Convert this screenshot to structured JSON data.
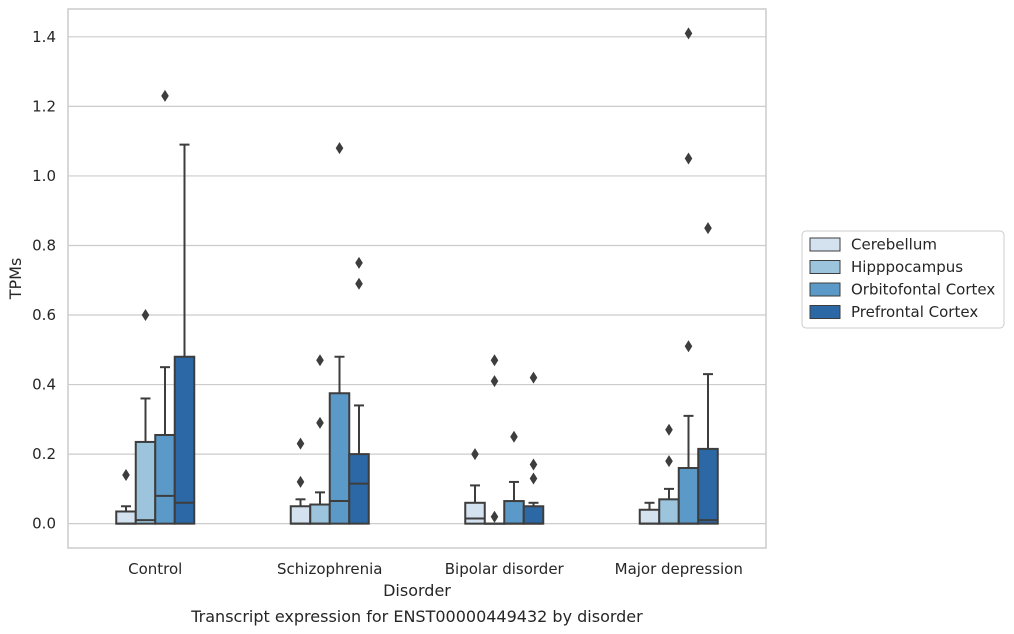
{
  "chart_data": {
    "type": "box",
    "xlabel": "Disorder",
    "ylabel": "TPMs",
    "caption": "Transcript expression for ENST00000449432 by disorder",
    "ylim": [
      -0.07,
      1.48
    ],
    "yticks": [
      0.0,
      0.2,
      0.4,
      0.6,
      0.8,
      1.0,
      1.2,
      1.4
    ],
    "ytick_labels": [
      "0.0",
      "0.2",
      "0.4",
      "0.6",
      "0.8",
      "1.0",
      "1.2",
      "1.4"
    ],
    "grid": "horizontal",
    "legend_position": "right",
    "categories": [
      "Control",
      "Schizophrenia",
      "Bipolar disorder",
      "Major depression"
    ],
    "series": [
      {
        "name": "Cerebellum",
        "color": "#d4e1ef",
        "boxes": [
          {
            "q1": 0.0,
            "median": 0.0,
            "q3": 0.035,
            "whisker_low": 0.0,
            "whisker_high": 0.05,
            "outliers": [
              0.14
            ]
          },
          {
            "q1": 0.0,
            "median": 0.0,
            "q3": 0.05,
            "whisker_low": 0.0,
            "whisker_high": 0.07,
            "outliers": [
              0.23,
              0.12
            ]
          },
          {
            "q1": 0.0,
            "median": 0.015,
            "q3": 0.06,
            "whisker_low": 0.0,
            "whisker_high": 0.11,
            "outliers": [
              0.2
            ]
          },
          {
            "q1": 0.0,
            "median": 0.0,
            "q3": 0.04,
            "whisker_low": 0.0,
            "whisker_high": 0.06,
            "outliers": []
          }
        ]
      },
      {
        "name": "Hipppocampus",
        "color": "#9cc4dd",
        "boxes": [
          {
            "q1": 0.0,
            "median": 0.01,
            "q3": 0.235,
            "whisker_low": 0.0,
            "whisker_high": 0.36,
            "outliers": [
              0.6
            ]
          },
          {
            "q1": 0.0,
            "median": 0.0,
            "q3": 0.055,
            "whisker_low": 0.0,
            "whisker_high": 0.09,
            "outliers": [
              0.47,
              0.29
            ]
          },
          {
            "q1": 0.0,
            "median": 0.0,
            "q3": 0.0,
            "whisker_low": 0.0,
            "whisker_high": 0.0,
            "outliers": [
              0.47,
              0.41,
              0.02
            ]
          },
          {
            "q1": 0.0,
            "median": 0.0,
            "q3": 0.07,
            "whisker_low": 0.0,
            "whisker_high": 0.1,
            "outliers": [
              0.27,
              0.18
            ]
          }
        ]
      },
      {
        "name": "Orbitofontal Cortex",
        "color": "#5b9ac8",
        "boxes": [
          {
            "q1": 0.0,
            "median": 0.08,
            "q3": 0.255,
            "whisker_low": 0.0,
            "whisker_high": 0.45,
            "outliers": [
              1.23
            ]
          },
          {
            "q1": 0.0,
            "median": 0.065,
            "q3": 0.375,
            "whisker_low": 0.0,
            "whisker_high": 0.48,
            "outliers": [
              1.08
            ]
          },
          {
            "q1": 0.0,
            "median": 0.0,
            "q3": 0.065,
            "whisker_low": 0.0,
            "whisker_high": 0.12,
            "outliers": [
              0.25
            ]
          },
          {
            "q1": 0.0,
            "median": 0.0,
            "q3": 0.16,
            "whisker_low": 0.0,
            "whisker_high": 0.31,
            "outliers": [
              1.41,
              1.05,
              0.51
            ]
          }
        ]
      },
      {
        "name": "Prefrontal Cortex",
        "color": "#2c68a6",
        "boxes": [
          {
            "q1": 0.0,
            "median": 0.06,
            "q3": 0.48,
            "whisker_low": 0.0,
            "whisker_high": 1.09,
            "outliers": []
          },
          {
            "q1": 0.0,
            "median": 0.115,
            "q3": 0.2,
            "whisker_low": 0.0,
            "whisker_high": 0.34,
            "outliers": [
              0.75,
              0.69
            ]
          },
          {
            "q1": 0.0,
            "median": 0.0,
            "q3": 0.05,
            "whisker_low": 0.0,
            "whisker_high": 0.06,
            "outliers": [
              0.42,
              0.17,
              0.13
            ]
          },
          {
            "q1": 0.0,
            "median": 0.01,
            "q3": 0.215,
            "whisker_low": 0.0,
            "whisker_high": 0.43,
            "outliers": [
              0.85
            ]
          }
        ]
      }
    ]
  }
}
